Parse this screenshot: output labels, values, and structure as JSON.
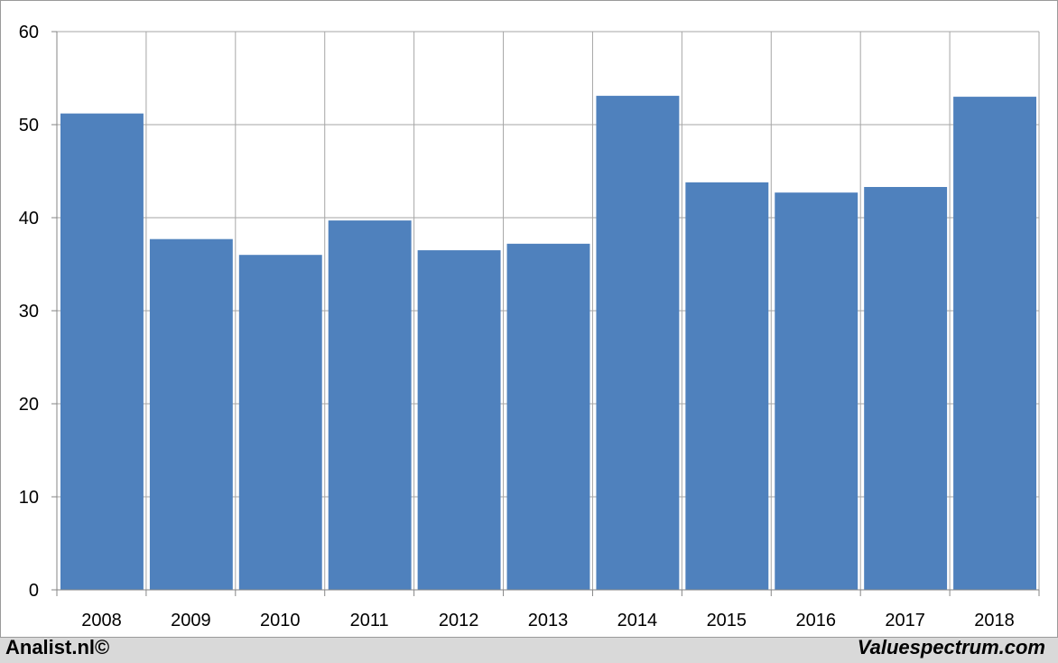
{
  "footer": {
    "left_text": "Analist.nl©",
    "right_text": "Valuespectrum.com"
  },
  "colors": {
    "bar": "#4f81bd",
    "grid": "#a6a6a6",
    "axis": "#868686",
    "frame_bg": "#ffffff",
    "page_bg": "#d9d9d9"
  },
  "chart_data": {
    "type": "bar",
    "title": "",
    "xlabel": "",
    "ylabel": "",
    "categories": [
      "2008",
      "2009",
      "2010",
      "2011",
      "2012",
      "2013",
      "2014",
      "2015",
      "2016",
      "2017",
      "2018"
    ],
    "values": [
      51.2,
      37.7,
      36.0,
      39.7,
      36.5,
      37.2,
      53.1,
      43.8,
      42.7,
      43.3,
      53.0
    ],
    "ylim": [
      0,
      60
    ],
    "yticks": [
      "0",
      "10",
      "20",
      "30",
      "40",
      "50",
      "60"
    ],
    "grid": true,
    "legend": "none"
  }
}
